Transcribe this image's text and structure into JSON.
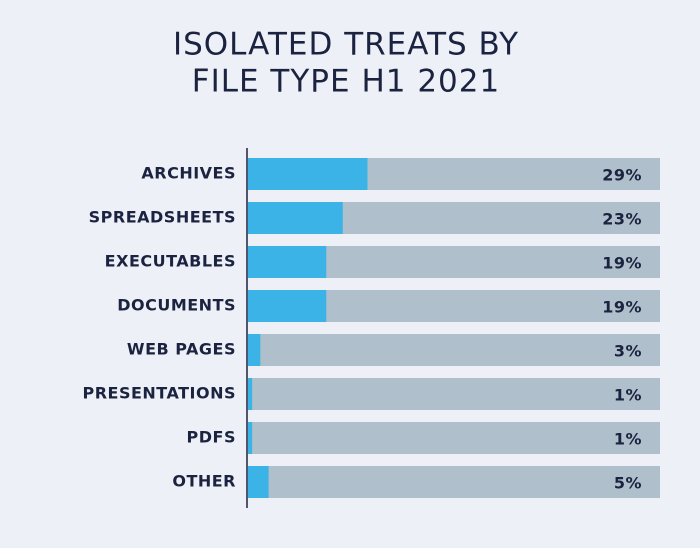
{
  "chart_data": {
    "type": "bar",
    "orientation": "horizontal",
    "title": [
      "ISOLATED TREATS BY",
      "FILE TYPE H1 2021"
    ],
    "categories": [
      "ARCHIVES",
      "SPREADSHEETS",
      "EXECUTABLES",
      "DOCUMENTS",
      "WEB PAGES",
      "PRESENTATIONS",
      "PDFS",
      "OTHER"
    ],
    "values": [
      29,
      23,
      19,
      19,
      3,
      1,
      1,
      5
    ],
    "value_labels": [
      "29%",
      "23%",
      "19%",
      "19%",
      "3%",
      "1%",
      "1%",
      "5%"
    ],
    "xlim": [
      0,
      100
    ],
    "color": "#3bb3e6",
    "track_color": "#afc0cc"
  }
}
